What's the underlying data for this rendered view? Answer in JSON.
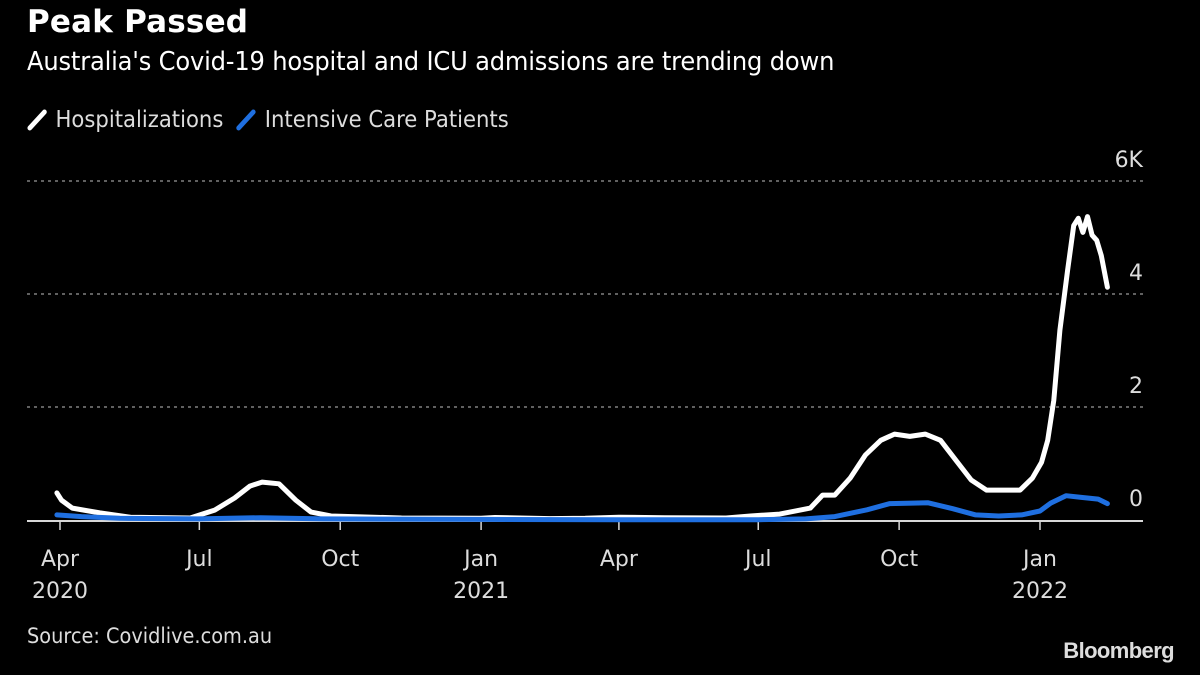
{
  "chart_data": {
    "type": "line",
    "title": "Peak Passed",
    "subtitle": "Australia's Covid-19 hospital and ICU admissions are trending down",
    "xlabel": "",
    "ylabel": "",
    "ylim": [
      0,
      6000
    ],
    "y_ticks": [
      {
        "value": 0,
        "label": "0"
      },
      {
        "value": 2000,
        "label": "2"
      },
      {
        "value": 4000,
        "label": "4"
      },
      {
        "value": 6000,
        "label": "6K"
      }
    ],
    "x_range": [
      "2020-03-09",
      "2022-03-16"
    ],
    "x_ticks": [
      {
        "date": "2020-04-01",
        "label": "Apr",
        "year": "2020"
      },
      {
        "date": "2020-07-01",
        "label": "Jul",
        "year": ""
      },
      {
        "date": "2020-10-01",
        "label": "Oct",
        "year": ""
      },
      {
        "date": "2021-01-01",
        "label": "Jan",
        "year": "2021"
      },
      {
        "date": "2021-04-01",
        "label": "Apr",
        "year": ""
      },
      {
        "date": "2021-07-01",
        "label": "Jul",
        "year": ""
      },
      {
        "date": "2021-10-01",
        "label": "Oct",
        "year": ""
      },
      {
        "date": "2022-01-01",
        "label": "Jan",
        "year": "2022"
      }
    ],
    "grid": true,
    "grid_style": "dotted",
    "legend_position": "top-left",
    "series": [
      {
        "name": "Hospitalizations",
        "color": "#ffffff",
        "points": [
          [
            "2020-03-30",
            480
          ],
          [
            "2020-04-02",
            350
          ],
          [
            "2020-04-09",
            210
          ],
          [
            "2020-04-27",
            125
          ],
          [
            "2020-05-17",
            50
          ],
          [
            "2020-06-25",
            35
          ],
          [
            "2020-07-11",
            175
          ],
          [
            "2020-07-24",
            390
          ],
          [
            "2020-08-03",
            600
          ],
          [
            "2020-08-11",
            670
          ],
          [
            "2020-08-22",
            640
          ],
          [
            "2020-09-02",
            350
          ],
          [
            "2020-09-12",
            140
          ],
          [
            "2020-09-25",
            70
          ],
          [
            "2020-11-10",
            35
          ],
          [
            "2021-01-01",
            30
          ],
          [
            "2021-01-10",
            45
          ],
          [
            "2021-02-15",
            25
          ],
          [
            "2021-03-10",
            30
          ],
          [
            "2021-04-01",
            50
          ],
          [
            "2021-05-01",
            40
          ],
          [
            "2021-06-10",
            35
          ],
          [
            "2021-06-26",
            70
          ],
          [
            "2021-07-15",
            105
          ],
          [
            "2021-08-04",
            210
          ],
          [
            "2021-08-12",
            440
          ],
          [
            "2021-08-20",
            440
          ],
          [
            "2021-08-30",
            740
          ],
          [
            "2021-09-09",
            1150
          ],
          [
            "2021-09-19",
            1410
          ],
          [
            "2021-09-28",
            1520
          ],
          [
            "2021-10-08",
            1480
          ],
          [
            "2021-10-18",
            1520
          ],
          [
            "2021-10-28",
            1410
          ],
          [
            "2021-11-07",
            1060
          ],
          [
            "2021-11-17",
            710
          ],
          [
            "2021-11-27",
            530
          ],
          [
            "2021-12-07",
            530
          ],
          [
            "2021-12-19",
            530
          ],
          [
            "2021-12-27",
            740
          ],
          [
            "2022-01-02",
            1020
          ],
          [
            "2022-01-06",
            1410
          ],
          [
            "2022-01-10",
            2120
          ],
          [
            "2022-01-14",
            3360
          ],
          [
            "2022-01-19",
            4420
          ],
          [
            "2022-01-23",
            5210
          ],
          [
            "2022-01-26",
            5340
          ],
          [
            "2022-01-29",
            5090
          ],
          [
            "2022-02-01",
            5370
          ],
          [
            "2022-02-04",
            5040
          ],
          [
            "2022-02-07",
            4950
          ],
          [
            "2022-02-10",
            4680
          ],
          [
            "2022-02-14",
            4120
          ]
        ]
      },
      {
        "name": "Intensive Care Patients",
        "color": "#1f6fe0",
        "points": [
          [
            "2020-03-30",
            90
          ],
          [
            "2020-04-15",
            60
          ],
          [
            "2020-05-10",
            30
          ],
          [
            "2020-06-30",
            20
          ],
          [
            "2020-08-10",
            40
          ],
          [
            "2020-09-20",
            20
          ],
          [
            "2021-01-01",
            10
          ],
          [
            "2021-04-01",
            5
          ],
          [
            "2021-07-01",
            5
          ],
          [
            "2021-08-01",
            20
          ],
          [
            "2021-08-20",
            60
          ],
          [
            "2021-09-10",
            180
          ],
          [
            "2021-09-25",
            290
          ],
          [
            "2021-10-10",
            300
          ],
          [
            "2021-10-20",
            305
          ],
          [
            "2021-11-05",
            200
          ],
          [
            "2021-11-20",
            90
          ],
          [
            "2021-12-05",
            70
          ],
          [
            "2021-12-20",
            90
          ],
          [
            "2022-01-01",
            160
          ],
          [
            "2022-01-08",
            300
          ],
          [
            "2022-01-18",
            430
          ],
          [
            "2022-01-28",
            400
          ],
          [
            "2022-02-08",
            370
          ],
          [
            "2022-02-14",
            290
          ]
        ]
      }
    ]
  },
  "footer": {
    "source": "Source: Covidlive.com.au",
    "brand": "Bloomberg"
  }
}
